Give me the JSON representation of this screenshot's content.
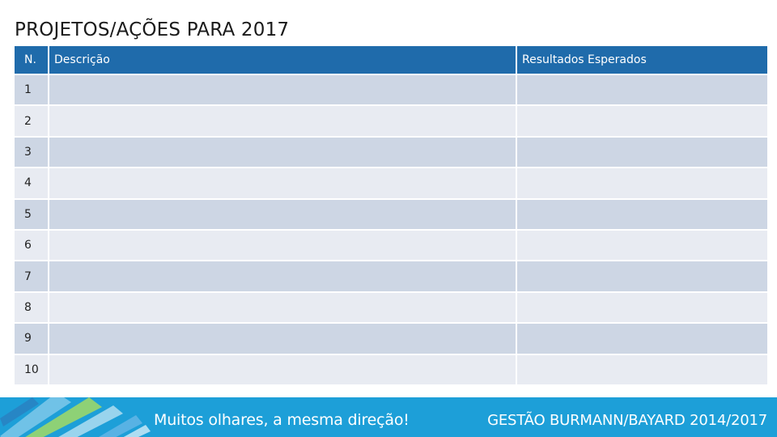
{
  "slide": {
    "title": "PROJETOS/AÇÕES PARA 2017"
  },
  "table": {
    "headers": [
      "N.",
      "Descrição",
      "Resultados Esperados"
    ],
    "rows": [
      {
        "n": "1",
        "descricao": "",
        "resultados": ""
      },
      {
        "n": "2",
        "descricao": "",
        "resultados": ""
      },
      {
        "n": "3",
        "descricao": "",
        "resultados": ""
      },
      {
        "n": "4",
        "descricao": "",
        "resultados": ""
      },
      {
        "n": "5",
        "descricao": "",
        "resultados": ""
      },
      {
        "n": "6",
        "descricao": "",
        "resultados": ""
      },
      {
        "n": "7",
        "descricao": "",
        "resultados": ""
      },
      {
        "n": "8",
        "descricao": "",
        "resultados": ""
      },
      {
        "n": "9",
        "descricao": "",
        "resultados": ""
      },
      {
        "n": "10",
        "descricao": "",
        "resultados": ""
      }
    ]
  },
  "footer": {
    "slogan": "Muitos olhares, a mesma direção!",
    "administration": "GESTÃO BURMANN/BAYARD 2014/2017"
  },
  "colors": {
    "header_blue": "#1f6bab",
    "row_dark": "#cdd6e4",
    "row_light": "#e8ebf2",
    "footer_blue": "#1d9fd8"
  }
}
